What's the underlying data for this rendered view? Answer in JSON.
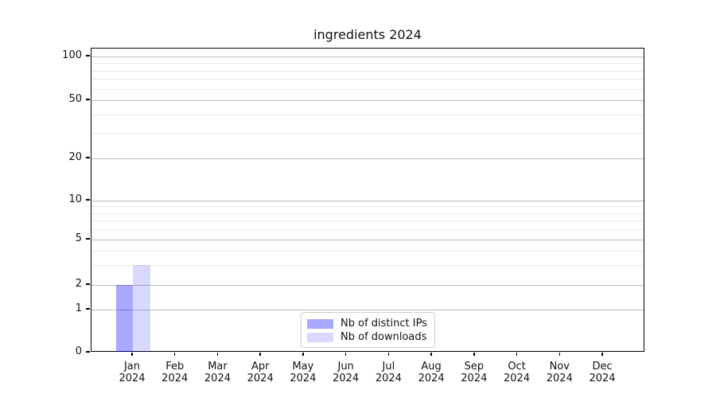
{
  "title": "ingredients 2024",
  "chart_data": {
    "type": "bar",
    "title": "ingredients 2024",
    "categories": [
      "Jan 2024",
      "Feb 2024",
      "Mar 2024",
      "Apr 2024",
      "May 2024",
      "Jun 2024",
      "Jul 2024",
      "Aug 2024",
      "Sep 2024",
      "Oct 2024",
      "Nov 2024",
      "Dec 2024"
    ],
    "x_months": [
      "Jan",
      "Feb",
      "Mar",
      "Apr",
      "May",
      "Jun",
      "Jul",
      "Aug",
      "Sep",
      "Oct",
      "Nov",
      "Dec"
    ],
    "x_year": "2024",
    "series": [
      {
        "name": "Nb of distinct IPs",
        "color": "rgba(0,0,255,0.34)",
        "values": [
          2,
          0,
          0,
          0,
          0,
          0,
          0,
          0,
          0,
          0,
          0,
          0
        ]
      },
      {
        "name": "Nb of downloads",
        "color": "rgba(0,0,255,0.15)",
        "values": [
          3,
          0,
          0,
          0,
          0,
          0,
          0,
          0,
          0,
          0,
          0,
          0
        ]
      }
    ],
    "y_axis": {
      "scale": "log-like with zero baseline",
      "major_ticks": [
        0,
        1,
        2,
        5,
        10,
        20,
        50,
        100
      ],
      "minor_ticks": [
        3,
        4,
        6,
        7,
        8,
        9,
        30,
        40,
        60,
        70,
        80,
        90
      ],
      "range": [
        0,
        113
      ]
    },
    "grid": true,
    "legend_position": "lower center"
  },
  "legend": {
    "items": [
      {
        "label": "Nb of distinct IPs",
        "color": "rgba(0,0,255,0.34)"
      },
      {
        "label": "Nb of downloads",
        "color": "rgba(0,0,255,0.15)"
      }
    ]
  },
  "colors": {
    "bar_distinct_ips_over_white": "#a9a9ff",
    "bar_downloads_over_white": "#d9d9ff",
    "grid_major": "#bdbdbd",
    "grid_minor": "#e9e9e9",
    "spine": "#000000",
    "text": "#111111"
  }
}
